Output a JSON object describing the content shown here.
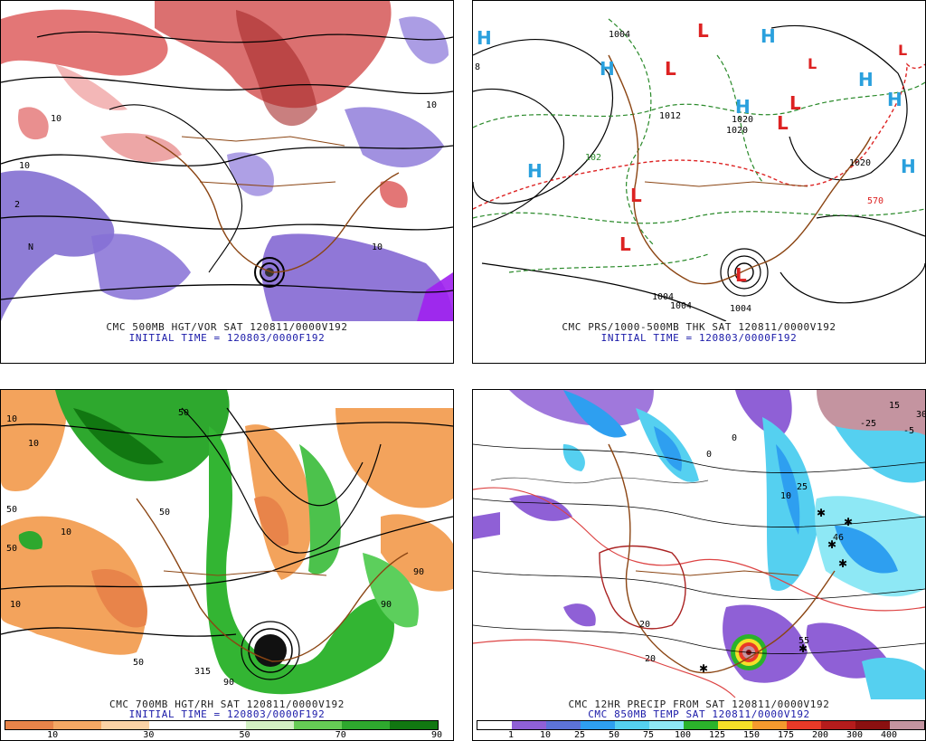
{
  "panels": [
    {
      "caption_line1": "CMC 500MB HGT/VOR SAT 120811/0000V192",
      "caption_line2": "INITIAL TIME = 120803/0000F192",
      "map_labels": [
        "10",
        "10",
        "10",
        "10",
        "2",
        "N"
      ]
    },
    {
      "caption_line1": "CMC PRS/1000-500MB THK SAT 120811/0000V192",
      "caption_line2": "INITIAL TIME = 120803/0000F192",
      "map_labels": [
        "1004",
        "1012",
        "1020",
        "1020",
        "1020",
        "1004",
        "1004",
        "1004",
        "570",
        "8",
        "102"
      ],
      "highs": [
        "H",
        "H",
        "H",
        "H",
        "H",
        "H",
        "H",
        "H"
      ],
      "lows": [
        "L",
        "L",
        "L",
        "L",
        "L",
        "L",
        "L",
        "L",
        "L"
      ]
    },
    {
      "caption_line1": "CMC 700MB HGT/RH SAT 120811/0000V192",
      "caption_line2": "INITIAL TIME = 120803/0000F192",
      "map_labels": [
        "10",
        "10",
        "50",
        "50",
        "10",
        "10",
        "50",
        "90",
        "90",
        "315",
        "50",
        "90",
        "50"
      ],
      "colorbar": {
        "colors": [
          "#e8844a",
          "#f5a864",
          "#fbd2a6",
          "#ffffff",
          "#ffffff",
          "#d2f0c4",
          "#66cc55",
          "#2ea82e",
          "#117711"
        ],
        "labels": [
          "10",
          "30",
          "50",
          "70",
          "90"
        ]
      }
    },
    {
      "caption_line1": "CMC 12HR PRECIP FROM SAT 120811/0000V192",
      "caption_line2": "CMC 850MB TEMP SAT 120811/0000V192",
      "map_labels": [
        "0",
        "10",
        "0",
        "-5",
        "20",
        "20",
        "-25",
        "25",
        "46",
        "15",
        "55",
        "30"
      ],
      "colorbar": {
        "colors": [
          "#ffffff",
          "#8f60d6",
          "#5c73d8",
          "#2e9ff0",
          "#55d0f0",
          "#8ee8f5",
          "#2bb32b",
          "#f5e028",
          "#f59a2e",
          "#e83a28",
          "#b51c1c",
          "#8a1010",
          "#c494a0"
        ],
        "labels": [
          "1",
          "10",
          "25",
          "50",
          "75",
          "100",
          "125",
          "150",
          "175",
          "200",
          "300",
          "400"
        ]
      }
    }
  ]
}
